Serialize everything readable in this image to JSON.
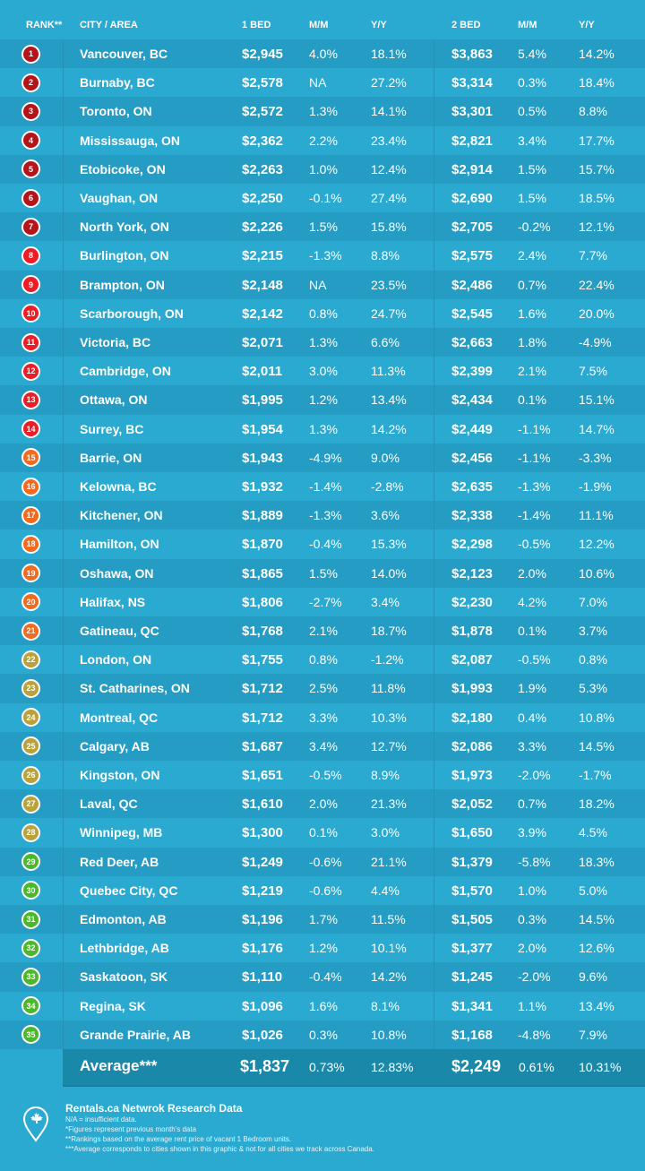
{
  "header": {
    "rank": "RANK**",
    "city": "CITY / AREA",
    "bed1": "1 BED",
    "mm1": "M/M",
    "yy1": "Y/Y",
    "bed2": "2 BED",
    "mm2": "M/M",
    "yy2": "Y/Y"
  },
  "colors": {
    "tier1": "#b3151a",
    "tier2": "#ee1c24",
    "tier3": "#f26a1f",
    "tier4": "#b9a23a",
    "tier5": "#4bb82a"
  },
  "rows": [
    [
      "1",
      "Vancouver, BC",
      "$2,945",
      "4.0%",
      "18.1%",
      "$3,863",
      "5.4%",
      "14.2%"
    ],
    [
      "2",
      "Burnaby, BC",
      "$2,578",
      "NA",
      "27.2%",
      "$3,314",
      "0.3%",
      "18.4%"
    ],
    [
      "3",
      "Toronto, ON",
      "$2,572",
      "1.3%",
      "14.1%",
      "$3,301",
      "0.5%",
      "8.8%"
    ],
    [
      "4",
      "Mississauga, ON",
      "$2,362",
      "2.2%",
      "23.4%",
      "$2,821",
      "3.4%",
      "17.7%"
    ],
    [
      "5",
      "Etobicoke, ON",
      "$2,263",
      "1.0%",
      "12.4%",
      "$2,914",
      "1.5%",
      "15.7%"
    ],
    [
      "6",
      "Vaughan, ON",
      "$2,250",
      "-0.1%",
      "27.4%",
      "$2,690",
      "1.5%",
      "18.5%"
    ],
    [
      "7",
      "North York, ON",
      "$2,226",
      "1.5%",
      "15.8%",
      "$2,705",
      "-0.2%",
      "12.1%"
    ],
    [
      "8",
      "Burlington, ON",
      "$2,215",
      "-1.3%",
      "8.8%",
      "$2,575",
      "2.4%",
      "7.7%"
    ],
    [
      "9",
      "Brampton, ON",
      "$2,148",
      "NA",
      "23.5%",
      "$2,486",
      "0.7%",
      "22.4%"
    ],
    [
      "10",
      "Scarborough, ON",
      "$2,142",
      "0.8%",
      "24.7%",
      "$2,545",
      "1.6%",
      "20.0%"
    ],
    [
      "11",
      "Victoria, BC",
      "$2,071",
      "1.3%",
      "6.6%",
      "$2,663",
      "1.8%",
      "-4.9%"
    ],
    [
      "12",
      "Cambridge, ON",
      "$2,011",
      "3.0%",
      "11.3%",
      "$2,399",
      "2.1%",
      "7.5%"
    ],
    [
      "13",
      "Ottawa, ON",
      "$1,995",
      "1.2%",
      "13.4%",
      "$2,434",
      "0.1%",
      "15.1%"
    ],
    [
      "14",
      "Surrey, BC",
      "$1,954",
      "1.3%",
      "14.2%",
      "$2,449",
      "-1.1%",
      "14.7%"
    ],
    [
      "15",
      "Barrie, ON",
      "$1,943",
      "-4.9%",
      "9.0%",
      "$2,456",
      "-1.1%",
      "-3.3%"
    ],
    [
      "16",
      "Kelowna, BC",
      "$1,932",
      "-1.4%",
      "-2.8%",
      "$2,635",
      "-1.3%",
      "-1.9%"
    ],
    [
      "17",
      "Kitchener, ON",
      "$1,889",
      "-1.3%",
      "3.6%",
      "$2,338",
      "-1.4%",
      "11.1%"
    ],
    [
      "18",
      "Hamilton, ON",
      "$1,870",
      "-0.4%",
      "15.3%",
      "$2,298",
      "-0.5%",
      "12.2%"
    ],
    [
      "19",
      "Oshawa, ON",
      "$1,865",
      "1.5%",
      "14.0%",
      "$2,123",
      "2.0%",
      "10.6%"
    ],
    [
      "20",
      "Halifax, NS",
      "$1,806",
      "-2.7%",
      "3.4%",
      "$2,230",
      "4.2%",
      "7.0%"
    ],
    [
      "21",
      "Gatineau, QC",
      "$1,768",
      "2.1%",
      "18.7%",
      "$1,878",
      "0.1%",
      "3.7%"
    ],
    [
      "22",
      "London, ON",
      "$1,755",
      "0.8%",
      "-1.2%",
      "$2,087",
      "-0.5%",
      "0.8%"
    ],
    [
      "23",
      "St. Catharines, ON",
      "$1,712",
      "2.5%",
      "11.8%",
      "$1,993",
      "1.9%",
      "5.3%"
    ],
    [
      "24",
      "Montreal, QC",
      "$1,712",
      "3.3%",
      "10.3%",
      "$2,180",
      "0.4%",
      "10.8%"
    ],
    [
      "25",
      "Calgary, AB",
      "$1,687",
      "3.4%",
      "12.7%",
      "$2,086",
      "3.3%",
      "14.5%"
    ],
    [
      "26",
      "Kingston, ON",
      "$1,651",
      "-0.5%",
      "8.9%",
      "$1,973",
      "-2.0%",
      "-1.7%"
    ],
    [
      "27",
      "Laval, QC",
      "$1,610",
      "2.0%",
      "21.3%",
      "$2,052",
      "0.7%",
      "18.2%"
    ],
    [
      "28",
      "Winnipeg, MB",
      "$1,300",
      "0.1%",
      "3.0%",
      "$1,650",
      "3.9%",
      "4.5%"
    ],
    [
      "29",
      "Red Deer, AB",
      "$1,249",
      "-0.6%",
      "21.1%",
      "$1,379",
      "-5.8%",
      "18.3%"
    ],
    [
      "30",
      "Quebec City, QC",
      "$1,219",
      "-0.6%",
      "4.4%",
      "$1,570",
      "1.0%",
      "5.0%"
    ],
    [
      "31",
      "Edmonton, AB",
      "$1,196",
      "1.7%",
      "11.5%",
      "$1,505",
      "0.3%",
      "14.5%"
    ],
    [
      "32",
      "Lethbridge, AB",
      "$1,176",
      "1.2%",
      "10.1%",
      "$1,377",
      "2.0%",
      "12.6%"
    ],
    [
      "33",
      "Saskatoon, SK",
      "$1,110",
      "-0.4%",
      "14.2%",
      "$1,245",
      "-2.0%",
      "9.6%"
    ],
    [
      "34",
      "Regina, SK",
      "$1,096",
      "1.6%",
      "8.1%",
      "$1,341",
      "1.1%",
      "13.4%"
    ],
    [
      "35",
      "Grande Prairie, AB",
      "$1,026",
      "0.3%",
      "10.8%",
      "$1,168",
      "-4.8%",
      "7.9%"
    ]
  ],
  "average": {
    "label": "Average***",
    "p1": "$1,837",
    "m1": "0.73%",
    "y1": "12.83%",
    "p2": "$2,249",
    "m2": "0.61%",
    "y2": "10.31%"
  },
  "footer": {
    "title": "Rentals.ca Netwrok Research Data",
    "notes": [
      "N/A = insufficient data.",
      "*Figures represent previous month's data",
      "**Rankings based on the average rent price of vacant 1 Bedroom units.",
      "***Average corresponds to cities shown in this graphic & not for all cities we track across Canada."
    ],
    "logo_icon": "map-pin-maple-leaf-icon"
  }
}
